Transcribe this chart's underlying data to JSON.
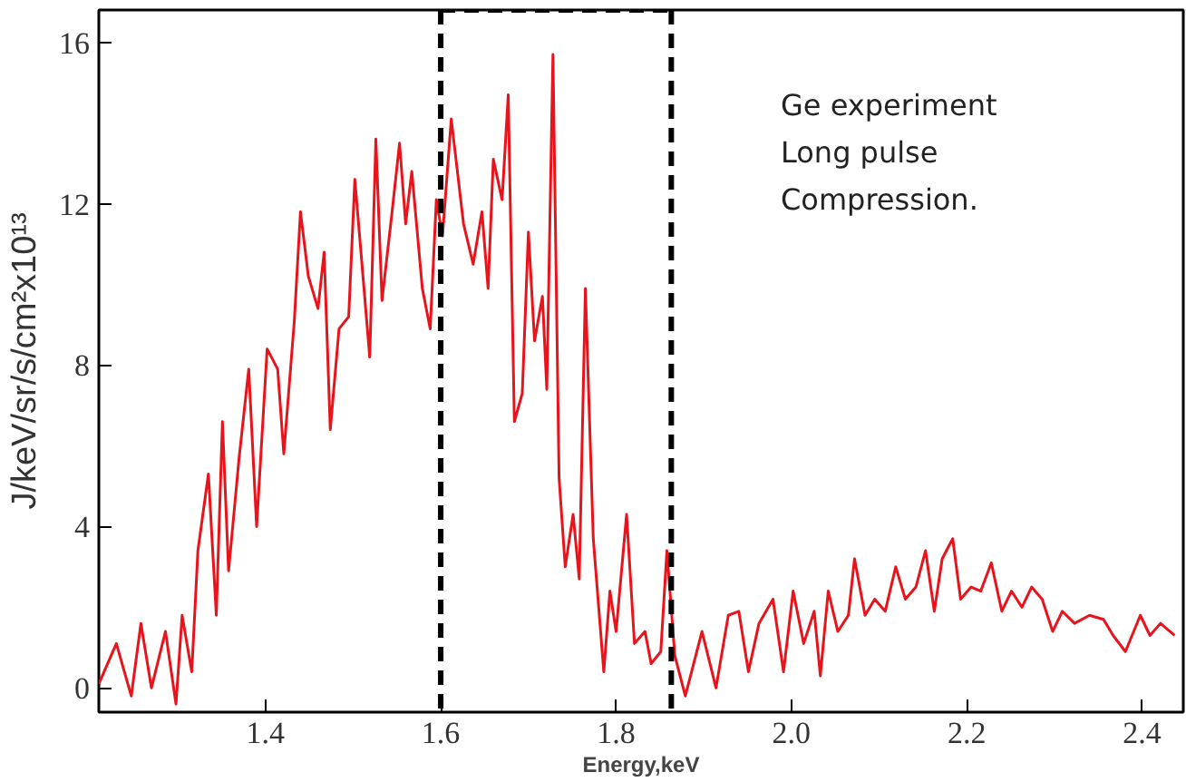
{
  "chart_data": {
    "type": "line",
    "xlabel": "Energy,keV",
    "ylabel": "J/keV/sr/s/cm²x10¹³",
    "annotations": [
      "Ge experiment\nLong pulse\nCompression."
    ],
    "xlim": [
      1.21,
      2.447
    ],
    "ylim": [
      -0.6,
      16.8
    ],
    "xticks": [
      1.4,
      1.6,
      1.8,
      {
        "value": 2.0,
        "label": "2.0"
      },
      2.2,
      2.4
    ],
    "yticks": [
      0,
      4,
      8,
      12,
      16
    ],
    "grid": false,
    "ref_lines": [
      {
        "axis": "x",
        "value": 1.6,
        "color": "#000000",
        "line_style": "dashed"
      },
      {
        "axis": "x",
        "value": 1.863,
        "color": "#000000",
        "line_style": "dashed"
      }
    ],
    "series": [
      {
        "color": "#e8141c",
        "x": [
          1.21,
          1.23,
          1.247,
          1.258,
          1.27,
          1.286,
          1.298,
          1.305,
          1.316,
          1.323,
          1.335,
          1.344,
          1.351,
          1.358,
          1.37,
          1.381,
          1.39,
          1.402,
          1.414,
          1.421,
          1.433,
          1.44,
          1.449,
          1.46,
          1.467,
          1.474,
          1.484,
          1.495,
          1.502,
          1.509,
          1.519,
          1.526,
          1.533,
          1.544,
          1.553,
          1.56,
          1.567,
          1.579,
          1.588,
          1.595,
          1.602,
          1.612,
          1.619,
          1.626,
          1.637,
          1.647,
          1.654,
          1.66,
          1.67,
          1.677,
          1.684,
          1.693,
          1.7,
          1.707,
          1.716,
          1.721,
          1.728,
          1.735,
          1.742,
          1.751,
          1.758,
          1.765,
          1.774,
          1.786,
          1.793,
          1.8,
          1.812,
          1.821,
          1.833,
          1.84,
          1.851,
          1.858,
          1.867,
          1.879,
          1.898,
          1.914,
          1.928,
          1.94,
          1.951,
          1.963,
          1.979,
          1.991,
          2.002,
          2.014,
          2.026,
          2.033,
          2.042,
          2.053,
          2.065,
          2.072,
          2.084,
          2.095,
          2.107,
          2.119,
          2.13,
          2.142,
          2.153,
          2.163,
          2.172,
          2.184,
          2.193,
          2.205,
          2.216,
          2.228,
          2.24,
          2.251,
          2.263,
          2.274,
          2.286,
          2.298,
          2.309,
          2.323,
          2.34,
          2.356,
          2.367,
          2.381,
          2.398,
          2.409,
          2.421,
          2.437
        ],
        "values": [
          0.1,
          1.1,
          -0.2,
          1.6,
          0,
          1.4,
          -0.4,
          1.8,
          0.4,
          3.4,
          5.3,
          1.8,
          6.6,
          2.9,
          5.7,
          7.9,
          4.0,
          8.4,
          7.9,
          5.8,
          9.1,
          11.8,
          10.2,
          9.4,
          10.8,
          6.4,
          8.9,
          9.2,
          12.6,
          10.8,
          8.2,
          13.6,
          9.6,
          11.7,
          13.5,
          11.5,
          12.8,
          9.9,
          8.9,
          12.1,
          11.2,
          14.1,
          12.8,
          11.5,
          10.5,
          11.8,
          9.9,
          13.1,
          12.1,
          14.7,
          6.6,
          7.3,
          11.3,
          8.6,
          9.7,
          7.4,
          15.7,
          5.2,
          3.0,
          4.3,
          2.7,
          9.9,
          3.7,
          0.4,
          2.4,
          1.4,
          4.3,
          1.1,
          1.4,
          0.6,
          0.9,
          3.4,
          0.8,
          -0.2,
          1.4,
          0,
          1.8,
          1.9,
          0.4,
          1.6,
          2.2,
          0.4,
          2.4,
          1.1,
          1.9,
          0.3,
          2.4,
          1.4,
          1.8,
          3.2,
          1.8,
          2.2,
          1.9,
          3.0,
          2.2,
          2.5,
          3.4,
          1.9,
          3.2,
          3.7,
          2.2,
          2.5,
          2.4,
          3.1,
          1.9,
          2.4,
          2.0,
          2.5,
          2.2,
          1.4,
          1.9,
          1.6,
          1.8,
          1.7,
          1.3,
          0.9,
          1.8,
          1.3,
          1.6,
          1.3
        ]
      }
    ]
  }
}
